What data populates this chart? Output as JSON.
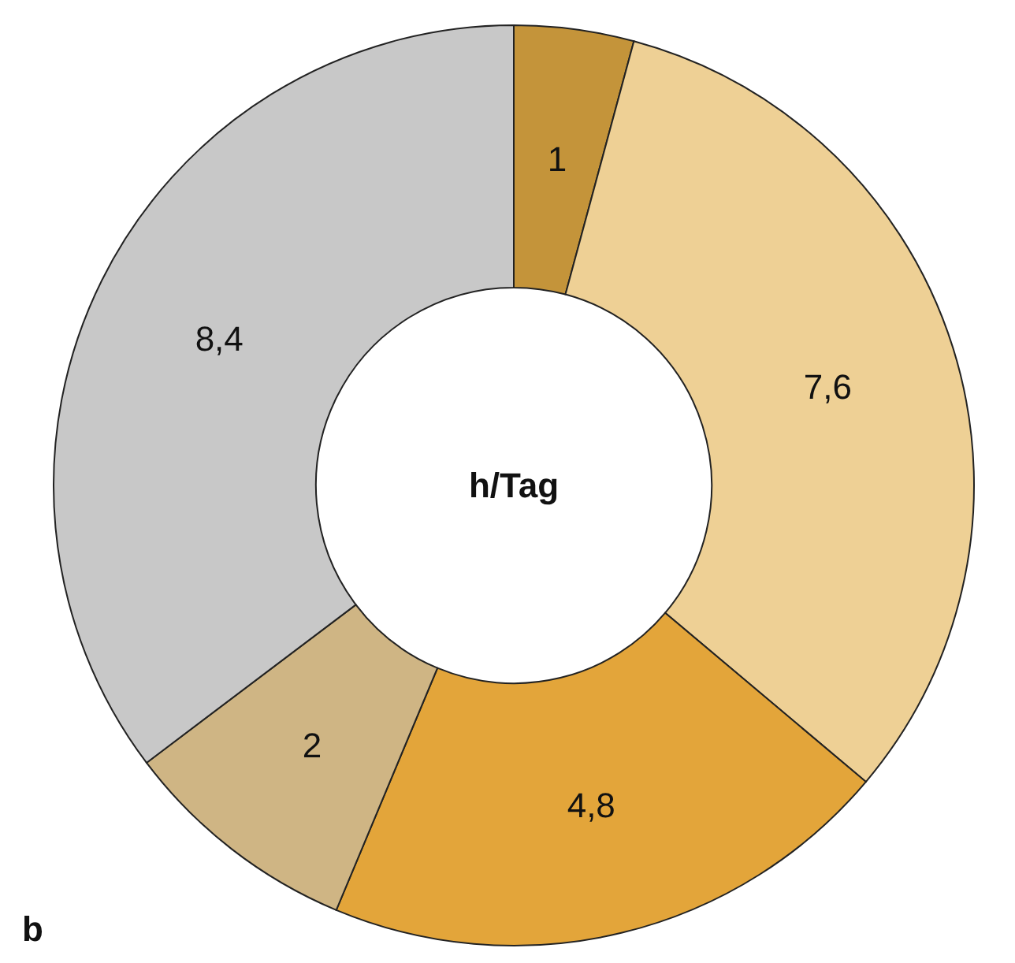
{
  "chart_data": {
    "type": "donut",
    "title": "h/Tag",
    "categories": [
      null,
      null,
      null,
      null,
      null
    ],
    "values": [
      1,
      7.6,
      4.8,
      2,
      8.4
    ],
    "value_labels": [
      "1",
      "7,6",
      "4,8",
      "2",
      "8,4"
    ],
    "colors": [
      "#c4943a",
      "#eed095",
      "#e3a53a",
      "#cfb584",
      "#c8c8c8"
    ],
    "annotations": [
      "b"
    ]
  }
}
